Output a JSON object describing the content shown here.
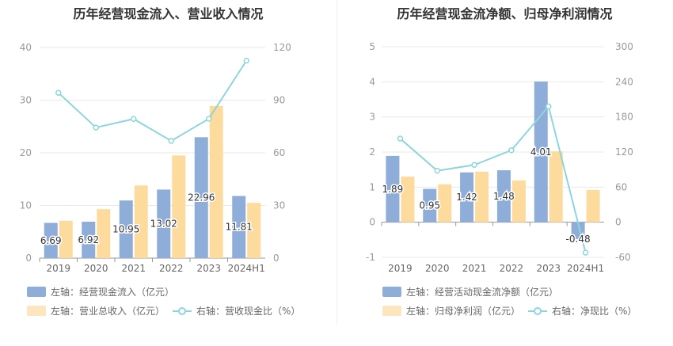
{
  "chart_data": [
    {
      "type": "bar+line",
      "title": "历年经营现金流入、营业收入情况",
      "categories": [
        "2019",
        "2020",
        "2021",
        "2022",
        "2023",
        "2024H1"
      ],
      "left_axis": {
        "ylim": [
          0,
          40
        ],
        "ticks": [
          "0",
          "10",
          "20",
          "30",
          "40"
        ]
      },
      "right_axis": {
        "ylim": [
          0,
          120
        ],
        "ticks": [
          "0",
          "30",
          "60",
          "90",
          "120"
        ]
      },
      "grid": true,
      "legend_position": "bottom",
      "series": [
        {
          "name": "左轴：经营现金流入（亿元）",
          "kind": "bar",
          "axis": "left",
          "color": "#8fadd9",
          "values": [
            6.69,
            6.92,
            10.95,
            13.02,
            22.96,
            11.81
          ],
          "labels": [
            "6.69",
            "6.92",
            "10.95",
            "13.02",
            "22.96",
            "11.81"
          ]
        },
        {
          "name": "左轴：营业总收入（亿元）",
          "kind": "bar",
          "axis": "left",
          "color": "#fddb9c",
          "values": [
            7.1,
            9.3,
            13.8,
            19.5,
            28.9,
            10.5
          ]
        },
        {
          "name": "右轴：营收现金比（%）",
          "kind": "line",
          "axis": "right",
          "color": "#8dd5dc",
          "values": [
            94.2,
            74.4,
            79.3,
            66.8,
            79.4,
            112.5
          ]
        }
      ]
    },
    {
      "type": "bar+line",
      "title": "历年经营现金流净额、归母净利润情况",
      "categories": [
        "2019",
        "2020",
        "2021",
        "2022",
        "2023",
        "2024H1"
      ],
      "left_axis": {
        "ylim": [
          -1,
          5
        ],
        "ticks": [
          "-1",
          "0",
          "1",
          "2",
          "3",
          "4",
          "5"
        ]
      },
      "right_axis": {
        "ylim": [
          -60,
          300
        ],
        "ticks": [
          "-60",
          "0",
          "60",
          "120",
          "180",
          "240",
          "300"
        ]
      },
      "grid": true,
      "legend_position": "bottom",
      "series": [
        {
          "name": "左轴：经营活动现金流净额（亿元）",
          "kind": "bar",
          "axis": "left",
          "color": "#8fadd9",
          "values": [
            1.89,
            0.95,
            1.42,
            1.48,
            4.01,
            -0.48
          ],
          "labels": [
            "1.89",
            "0.95",
            "1.42",
            "1.48",
            "4.01",
            "-0.48"
          ]
        },
        {
          "name": "左轴：归母净利润（亿元）",
          "kind": "bar",
          "axis": "left",
          "color": "#fddb9c",
          "values": [
            1.3,
            1.08,
            1.44,
            1.19,
            2.02,
            0.92
          ]
        },
        {
          "name": "右轴：净现比（%）",
          "kind": "line",
          "axis": "right",
          "color": "#8dd5dc",
          "values": [
            143,
            88,
            98,
            123,
            198,
            -52
          ]
        }
      ]
    }
  ]
}
